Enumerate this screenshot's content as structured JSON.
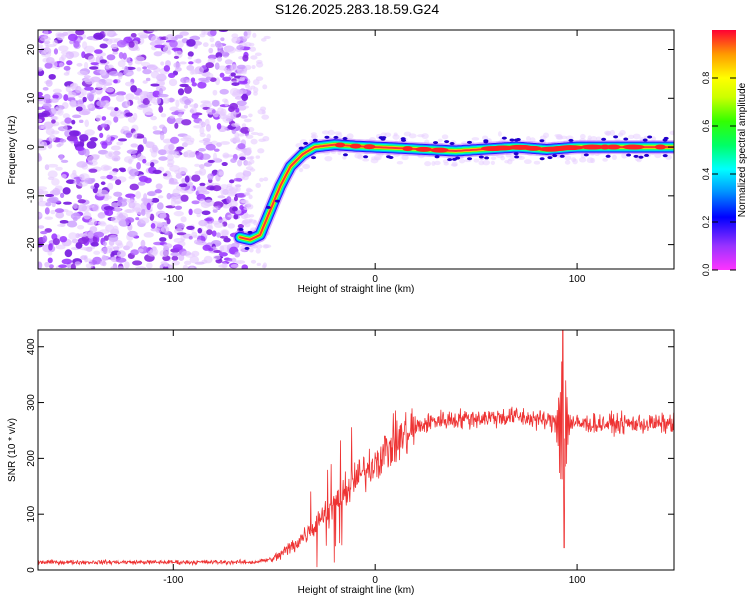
{
  "title": "S126.2025.283.18.59.G24",
  "chart_data": [
    {
      "type": "heatmap",
      "xlabel": "Height of straight line (km)",
      "ylabel": "Frequency (Hz)",
      "xlim": [
        -167,
        148
      ],
      "ylim": [
        -25,
        24
      ],
      "xticks": [
        -100,
        0,
        100
      ],
      "yticks": [
        -20,
        -10,
        0,
        10,
        20
      ],
      "colorbar": {
        "label": "Normalized spectral amplitude",
        "range": [
          0,
          1
        ],
        "ticks": [
          "0.0",
          "0.2",
          "0.4",
          "0.6",
          "0.8"
        ],
        "tick_values": [
          0,
          0.2,
          0.4,
          0.6,
          0.8
        ]
      },
      "signal_track": [
        {
          "x": -67,
          "y": -18.5
        },
        {
          "x": -62,
          "y": -19
        },
        {
          "x": -57,
          "y": -18
        },
        {
          "x": -52,
          "y": -13
        },
        {
          "x": -47,
          "y": -8
        },
        {
          "x": -42,
          "y": -4
        },
        {
          "x": -36,
          "y": -1.5
        },
        {
          "x": -30,
          "y": 0
        },
        {
          "x": -20,
          "y": 0.5
        },
        {
          "x": -10,
          "y": 0.2
        },
        {
          "x": 0,
          "y": 0
        },
        {
          "x": 40,
          "y": -0.8
        },
        {
          "x": 70,
          "y": 0
        },
        {
          "x": 85,
          "y": -0.5
        },
        {
          "x": 100,
          "y": 0
        },
        {
          "x": 148,
          "y": 0
        }
      ],
      "noise_region_x": [
        -167,
        -65
      ]
    },
    {
      "type": "line",
      "xlabel": "Height of straight line (km)",
      "ylabel": "SNR (10 * v/v)",
      "xlim": [
        -167,
        148
      ],
      "ylim": [
        0,
        430
      ],
      "xticks": [
        -100,
        0,
        100
      ],
      "yticks": [
        0,
        100,
        200,
        300,
        400
      ],
      "color": "#ee3333",
      "trend": [
        {
          "x": -167,
          "y": 14
        },
        {
          "x": -60,
          "y": 14
        },
        {
          "x": -50,
          "y": 20
        },
        {
          "x": -40,
          "y": 45
        },
        {
          "x": -30,
          "y": 80
        },
        {
          "x": -20,
          "y": 120
        },
        {
          "x": -10,
          "y": 160
        },
        {
          "x": 0,
          "y": 195
        },
        {
          "x": 10,
          "y": 230
        },
        {
          "x": 20,
          "y": 255
        },
        {
          "x": 30,
          "y": 268
        },
        {
          "x": 50,
          "y": 272
        },
        {
          "x": 70,
          "y": 275
        },
        {
          "x": 80,
          "y": 270
        },
        {
          "x": 90,
          "y": 265
        },
        {
          "x": 100,
          "y": 262
        },
        {
          "x": 120,
          "y": 262
        },
        {
          "x": 148,
          "y": 262
        }
      ],
      "spike": {
        "x": 93,
        "max": 430,
        "min": 40
      }
    }
  ]
}
